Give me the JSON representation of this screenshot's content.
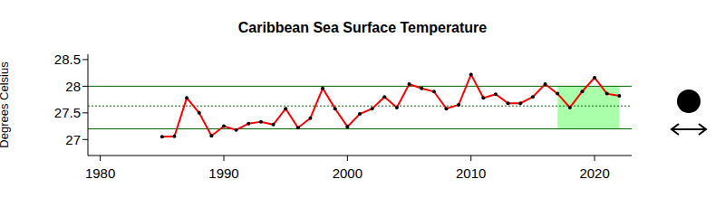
{
  "chart_data": {
    "type": "line",
    "title": "Caribbean Sea Surface Temperature",
    "y_label": "Degrees Celsius",
    "x": [
      1985,
      1986,
      1987,
      1988,
      1989,
      1990,
      1991,
      1992,
      1993,
      1994,
      1995,
      1996,
      1997,
      1998,
      1999,
      2000,
      2001,
      2002,
      2003,
      2004,
      2005,
      2006,
      2007,
      2008,
      2009,
      2010,
      2011,
      2012,
      2013,
      2014,
      2015,
      2016,
      2017,
      2018,
      2019,
      2020,
      2021,
      2022
    ],
    "values": [
      27.05,
      27.06,
      27.78,
      27.5,
      27.07,
      27.25,
      27.18,
      27.3,
      27.33,
      27.28,
      27.58,
      27.22,
      27.4,
      27.96,
      27.58,
      27.24,
      27.48,
      27.58,
      27.8,
      27.6,
      28.04,
      27.96,
      27.9,
      27.58,
      27.65,
      28.22,
      27.78,
      27.85,
      27.68,
      27.68,
      27.8,
      28.04,
      27.86,
      27.6,
      27.9,
      28.16,
      27.86,
      27.82
    ],
    "color": "#ff0000",
    "marker": "circle",
    "xlim": [
      1979,
      2023
    ],
    "xticks": [
      1980,
      1990,
      2000,
      2010,
      2020
    ],
    "ylim": [
      26.7,
      28.6
    ],
    "yticks": [
      27,
      27.5,
      28,
      28.5
    ],
    "grid": false,
    "reference_lines": {
      "mean": 27.63,
      "upper": 28.0,
      "lower": 27.2
    },
    "highlight": {
      "x": [
        2017,
        2022
      ]
    }
  }
}
